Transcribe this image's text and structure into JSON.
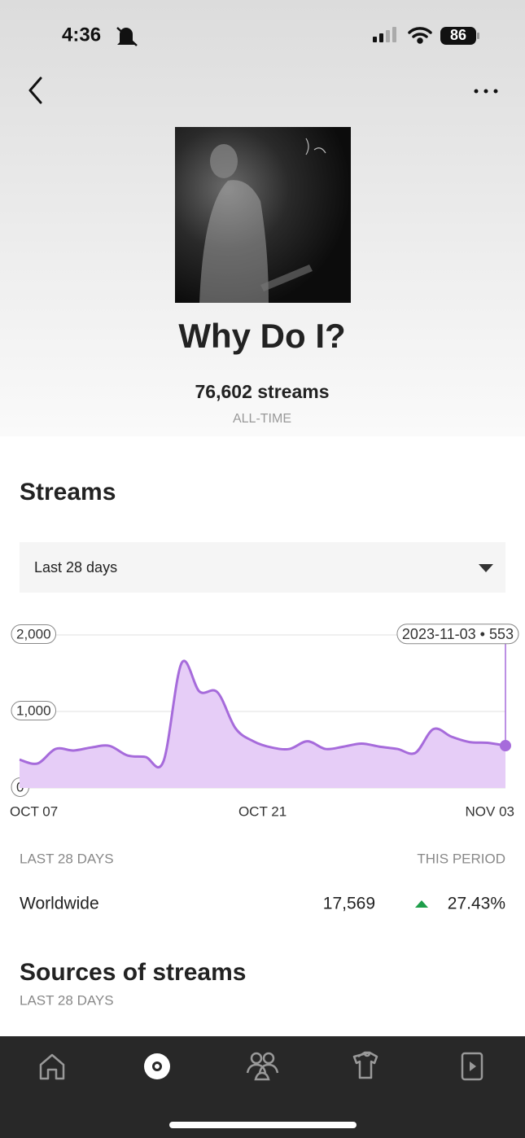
{
  "status_bar": {
    "time": "4:36",
    "battery": "86"
  },
  "header": {
    "title": "Why Do I?",
    "streams": "76,602 streams",
    "period": "ALL-TIME"
  },
  "streams_section": {
    "heading": "Streams",
    "dropdown": "Last 28 days"
  },
  "chart_data": {
    "type": "area",
    "categories": [
      "OCT 07",
      null,
      null,
      null,
      null,
      null,
      null,
      null,
      null,
      null,
      null,
      null,
      null,
      null,
      "OCT 21",
      null,
      null,
      null,
      null,
      null,
      null,
      null,
      null,
      null,
      null,
      null,
      null,
      "NOV 03"
    ],
    "series": [
      {
        "color": "#a66bdb",
        "fill": "#e6cdf7",
        "values": [
          370,
          320,
          510,
          490,
          530,
          550,
          425,
          405,
          350,
          1630,
          1260,
          1250,
          780,
          610,
          530,
          510,
          610,
          510,
          540,
          580,
          540,
          510,
          460,
          770,
          670,
          600,
          590,
          553
        ]
      }
    ],
    "ylim": [
      0,
      2000
    ],
    "yticks": [
      0,
      {
        "value": 1000,
        "label": "1,000"
      },
      {
        "value": 2000,
        "label": "2,000"
      }
    ],
    "grid": true,
    "annotation": "2023-11-03 • 553"
  },
  "summary": {
    "left_label": "LAST 28 DAYS",
    "right_label": "THIS PERIOD",
    "region": "Worldwide",
    "streams": "17,569",
    "change": "27.43%"
  },
  "sources": {
    "heading": "Sources of streams",
    "period": "LAST 28 DAYS"
  }
}
